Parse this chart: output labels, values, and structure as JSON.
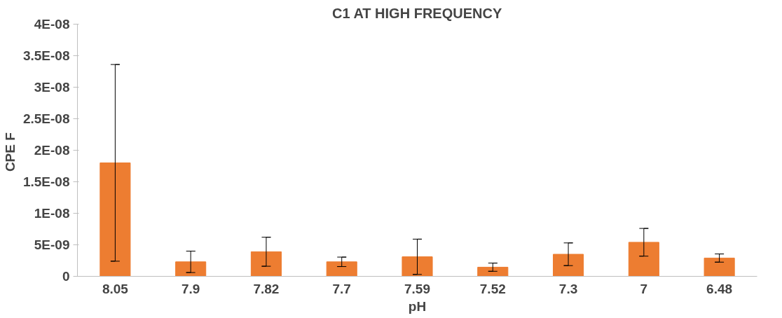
{
  "chart_data": {
    "type": "bar",
    "title": "C1 AT HIGH FREQUENCY",
    "xlabel": "pH",
    "ylabel": "CPE  F",
    "categories": [
      "8.05",
      "7.9",
      "7.82",
      "7.7",
      "7.59",
      "7.52",
      "7.3",
      "7",
      "6.48"
    ],
    "values": [
      1.8e-08,
      2.3e-09,
      3.9e-09,
      2.3e-09,
      3.1e-09,
      1.45e-09,
      3.5e-09,
      5.4e-09,
      2.9e-09
    ],
    "errors": [
      1.56e-08,
      1.7e-09,
      2.3e-09,
      7.5e-10,
      2.8e-09,
      6.5e-10,
      1.8e-09,
      2.2e-09,
      6.5e-10
    ],
    "color": "#ed7d31",
    "ylim": [
      0,
      4e-08
    ],
    "yticks": [
      {
        "value": 0,
        "label": "0"
      },
      {
        "value": 5e-09,
        "label": "5E-09"
      },
      {
        "value": 1e-08,
        "label": "1E-08"
      },
      {
        "value": 1.5e-08,
        "label": "1.5E-08"
      },
      {
        "value": 2e-08,
        "label": "2E-08"
      },
      {
        "value": 2.5e-08,
        "label": "2.5E-08"
      },
      {
        "value": 3e-08,
        "label": "3E-08"
      },
      {
        "value": 3.5e-08,
        "label": "3.5E-08"
      },
      {
        "value": 4e-08,
        "label": "4E-08"
      }
    ],
    "grid": false
  }
}
